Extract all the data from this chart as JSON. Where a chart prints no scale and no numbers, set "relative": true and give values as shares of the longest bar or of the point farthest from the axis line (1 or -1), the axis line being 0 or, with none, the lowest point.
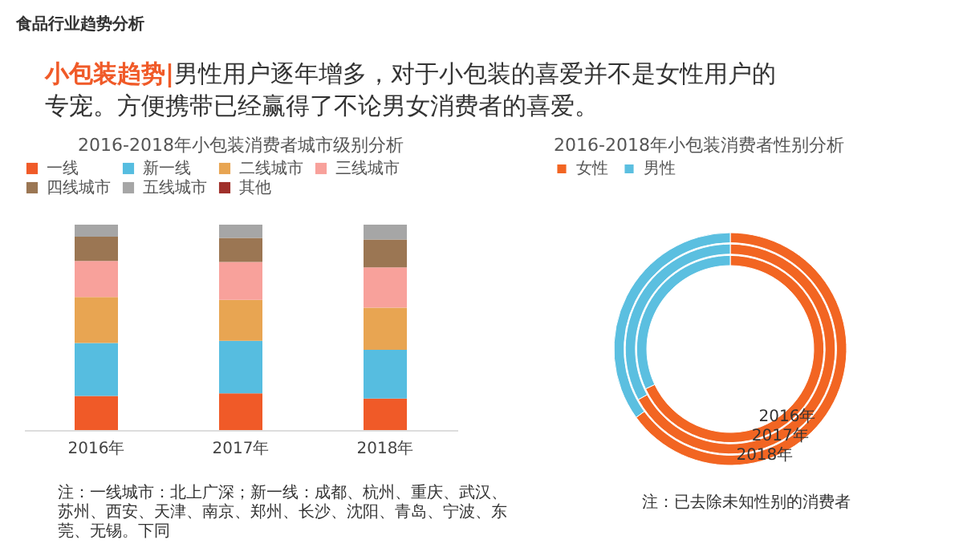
{
  "chart_data": [
    {
      "type": "bar",
      "stacked": true,
      "relative": true,
      "legend": "top",
      "title": "2016-2018年小包装消费者城市级别分析",
      "categories": [
        "2016年",
        "2017年",
        "2018年"
      ],
      "series": [
        {
          "name": "一线",
          "color": "#f05a28",
          "values": [
            0.166,
            0.179,
            0.153
          ]
        },
        {
          "name": "新一线",
          "color": "#56bde0",
          "values": [
            0.258,
            0.256,
            0.238
          ]
        },
        {
          "name": "二线城市",
          "color": "#e8a552",
          "values": [
            0.223,
            0.199,
            0.205
          ]
        },
        {
          "name": "三线城市",
          "color": "#f8a19b",
          "values": [
            0.176,
            0.184,
            0.196
          ]
        },
        {
          "name": "四线城市",
          "color": "#9b7653",
          "values": [
            0.118,
            0.118,
            0.136
          ]
        },
        {
          "name": "五线城市",
          "color": "#a6a6a6",
          "values": [
            0.059,
            0.064,
            0.072
          ]
        },
        {
          "name": "其他",
          "color": "#a0302a",
          "values": [
            0,
            0,
            0
          ]
        }
      ],
      "annotations": [
        "食品行业趋势分析",
        "小包装趋势|男性用户逐年增多，对于小包装的喜爱并不是女性用户的专宠。方便携带已经赢得了不论男女消费者的喜爱。",
        "注：一线城市：北上广深；新一线：成都、杭州、重庆、武汉、苏州、西安、天津、南京、郑州、长沙、沈阳、青岛、宁波、东莞、无锡。下同"
      ]
    },
    {
      "type": "donut",
      "legend": "top",
      "title": "2016-2018年小包装消费者性别分析",
      "categories": [
        "女性",
        "男性"
      ],
      "colors": [
        "#f26522",
        "#5bbfe0"
      ],
      "series": [
        {
          "name": "2016年",
          "values": [
            68,
            32
          ]
        },
        {
          "name": "2017年",
          "values": [
            67,
            33
          ]
        },
        {
          "name": "2018年",
          "values": [
            65,
            35
          ]
        }
      ],
      "annotations": [
        "注：已去除未知性别的消费者"
      ]
    }
  ]
}
